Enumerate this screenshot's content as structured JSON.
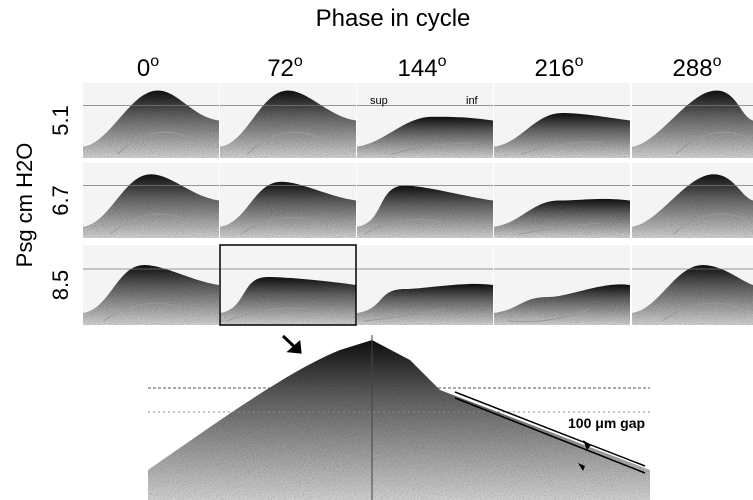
{
  "header": {
    "title": "Phase in cycle",
    "columns": [
      {
        "text": "0",
        "sup": "o"
      },
      {
        "text": "72",
        "sup": "o"
      },
      {
        "text": "144",
        "sup": "o"
      },
      {
        "text": "216",
        "sup": "o"
      },
      {
        "text": "288",
        "sup": "o"
      }
    ]
  },
  "y_axis": {
    "label": "Psg cm H2O",
    "rows": [
      "5.1",
      "6.7",
      "8.5"
    ]
  },
  "annotations": {
    "sup": "sup",
    "inf": "inf",
    "gap": "100 μm gap"
  }
}
